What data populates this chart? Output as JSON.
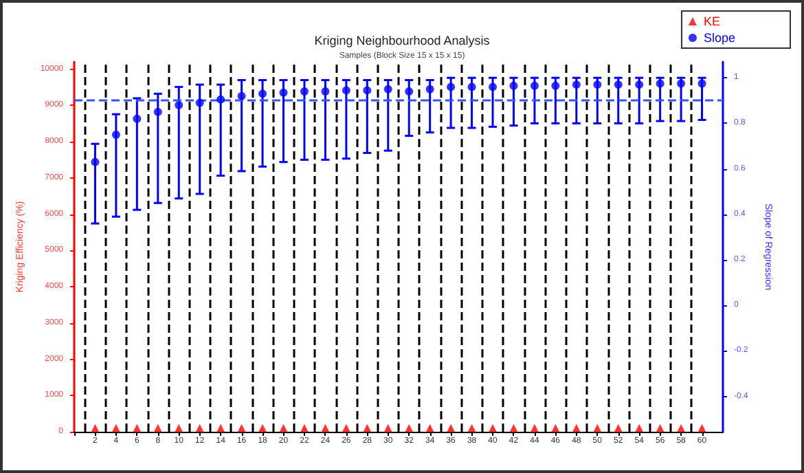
{
  "chart_data": {
    "type": "scatter",
    "title": "Kriging Neighbourhood Analysis",
    "subtitle": "Samples (Block Size 15 x 15 x 15)",
    "ylabel": "Kriging Efficiency (%)",
    "y2label": "Slope of Regression",
    "x": [
      2,
      4,
      6,
      8,
      10,
      12,
      14,
      16,
      18,
      20,
      22,
      24,
      26,
      28,
      30,
      32,
      34,
      36,
      38,
      40,
      42,
      44,
      46,
      48,
      50,
      52,
      54,
      56,
      58,
      60
    ],
    "series": [
      {
        "name": "KE",
        "marker": "triangle",
        "color": "#ff0000",
        "values": [
          100,
          100,
          100,
          100,
          100,
          100,
          100,
          100,
          100,
          100,
          100,
          100,
          100,
          100,
          100,
          100,
          100,
          100,
          100,
          100,
          100,
          100,
          100,
          100,
          100,
          100,
          100,
          100,
          100,
          100
        ]
      },
      {
        "name": "Slope",
        "marker": "circle",
        "axis": "y2",
        "color": "#0000ff",
        "values": [
          0.63,
          0.75,
          0.82,
          0.85,
          0.88,
          0.89,
          0.905,
          0.92,
          0.93,
          0.935,
          0.94,
          0.94,
          0.945,
          0.945,
          0.95,
          0.94,
          0.95,
          0.96,
          0.96,
          0.96,
          0.965,
          0.965,
          0.965,
          0.97,
          0.97,
          0.97,
          0.97,
          0.975,
          0.975,
          0.975
        ],
        "errors": [
          [
            0.36,
            0.71
          ],
          [
            0.39,
            0.84
          ],
          [
            0.42,
            0.91
          ],
          [
            0.45,
            0.93
          ],
          [
            0.47,
            0.96
          ],
          [
            0.49,
            0.97
          ],
          [
            0.57,
            0.97
          ],
          [
            0.59,
            0.99
          ],
          [
            0.61,
            0.99
          ],
          [
            0.63,
            0.99
          ],
          [
            0.64,
            0.99
          ],
          [
            0.64,
            0.99
          ],
          [
            0.645,
            0.99
          ],
          [
            0.67,
            0.99
          ],
          [
            0.68,
            0.99
          ],
          [
            0.745,
            0.99
          ],
          [
            0.76,
            0.99
          ],
          [
            0.78,
            1.0
          ],
          [
            0.78,
            1.0
          ],
          [
            0.785,
            1.0
          ],
          [
            0.79,
            1.0
          ],
          [
            0.8,
            1.0
          ],
          [
            0.8,
            1.0
          ],
          [
            0.8,
            1.0
          ],
          [
            0.8,
            1.0
          ],
          [
            0.8,
            1.0
          ],
          [
            0.8,
            1.0
          ],
          [
            0.81,
            1.0
          ],
          [
            0.81,
            1.0
          ],
          [
            0.815,
            1.0
          ]
        ]
      }
    ],
    "xlim": [
      0,
      62
    ],
    "xticks": [
      {
        "value": 0,
        "label": null
      },
      2,
      4,
      6,
      8,
      10,
      12,
      14,
      16,
      18,
      20,
      22,
      24,
      26,
      28,
      30,
      32,
      34,
      36,
      38,
      40,
      42,
      44,
      46,
      48,
      50,
      52,
      54,
      56,
      58,
      60
    ],
    "ylim": [
      0,
      10200
    ],
    "yticks": [
      0,
      1000,
      2000,
      3000,
      4000,
      5000,
      6000,
      7000,
      8000,
      9000,
      10000
    ],
    "y2lim": [
      -0.555,
      1.07
    ],
    "y2ticks": [
      -0.4,
      -0.2,
      0.0,
      0.2,
      0.4,
      0.6,
      0.8,
      1.0
    ],
    "ref_lines": [
      {
        "axis": "y2",
        "value": 0.9,
        "color": "#3355ff",
        "line_style": "dashed"
      },
      {
        "axis": "x",
        "value": 1,
        "color": "#000000",
        "line_style": "dashed"
      },
      {
        "axis": "x",
        "value": 3,
        "color": "#000000",
        "line_style": "dashed"
      },
      {
        "axis": "x",
        "value": 5,
        "color": "#000000",
        "line_style": "dashed"
      },
      {
        "axis": "x",
        "value": 7,
        "color": "#000000",
        "line_style": "dashed"
      },
      {
        "axis": "x",
        "value": 9,
        "color": "#000000",
        "line_style": "dashed"
      },
      {
        "axis": "x",
        "value": 11,
        "color": "#000000",
        "line_style": "dashed"
      },
      {
        "axis": "x",
        "value": 13,
        "color": "#000000",
        "line_style": "dashed"
      },
      {
        "axis": "x",
        "value": 15,
        "color": "#000000",
        "line_style": "dashed"
      },
      {
        "axis": "x",
        "value": 17,
        "color": "#000000",
        "line_style": "dashed"
      },
      {
        "axis": "x",
        "value": 19,
        "color": "#000000",
        "line_style": "dashed"
      },
      {
        "axis": "x",
        "value": 21,
        "color": "#000000",
        "line_style": "dashed"
      },
      {
        "axis": "x",
        "value": 23,
        "color": "#000000",
        "line_style": "dashed"
      },
      {
        "axis": "x",
        "value": 25,
        "color": "#000000",
        "line_style": "dashed"
      },
      {
        "axis": "x",
        "value": 27,
        "color": "#000000",
        "line_style": "dashed"
      },
      {
        "axis": "x",
        "value": 29,
        "color": "#000000",
        "line_style": "dashed"
      },
      {
        "axis": "x",
        "value": 31,
        "color": "#000000",
        "line_style": "dashed"
      },
      {
        "axis": "x",
        "value": 33,
        "color": "#000000",
        "line_style": "dashed"
      },
      {
        "axis": "x",
        "value": 35,
        "color": "#000000",
        "line_style": "dashed"
      },
      {
        "axis": "x",
        "value": 37,
        "color": "#000000",
        "line_style": "dashed"
      },
      {
        "axis": "x",
        "value": 39,
        "color": "#000000",
        "line_style": "dashed"
      },
      {
        "axis": "x",
        "value": 41,
        "color": "#000000",
        "line_style": "dashed"
      },
      {
        "axis": "x",
        "value": 43,
        "color": "#000000",
        "line_style": "dashed"
      },
      {
        "axis": "x",
        "value": 45,
        "color": "#000000",
        "line_style": "dashed"
      },
      {
        "axis": "x",
        "value": 47,
        "color": "#000000",
        "line_style": "dashed"
      },
      {
        "axis": "x",
        "value": 49,
        "color": "#000000",
        "line_style": "dashed"
      },
      {
        "axis": "x",
        "value": 51,
        "color": "#000000",
        "line_style": "dashed"
      },
      {
        "axis": "x",
        "value": 53,
        "color": "#000000",
        "line_style": "dashed"
      },
      {
        "axis": "x",
        "value": 55,
        "color": "#000000",
        "line_style": "dashed"
      },
      {
        "axis": "x",
        "value": 57,
        "color": "#000000",
        "line_style": "dashed"
      },
      {
        "axis": "x",
        "value": 59,
        "color": "#000000",
        "line_style": "dashed"
      }
    ],
    "grid": false,
    "legend": "top right"
  }
}
